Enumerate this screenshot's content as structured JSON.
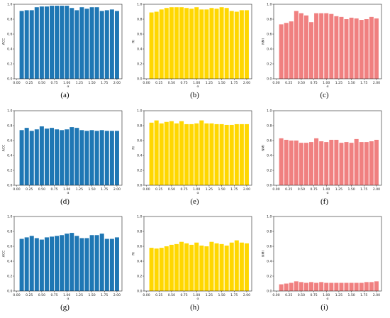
{
  "chart_data": [
    {
      "panel_label": "(a)",
      "type": "bar",
      "color": "#1f77b4",
      "xlabel": "α",
      "ylabel": "ACC",
      "ylim": [
        0,
        1.0
      ],
      "yticks": [
        "0.0",
        "0.2",
        "0.4",
        "0.6",
        "0.8",
        "1.0"
      ],
      "xticks": [
        "0.00",
        "0.25",
        "0.50",
        "0.75",
        "1.00",
        "1.25",
        "1.50",
        "1.75",
        "2.00"
      ],
      "x": [
        0.1,
        0.2,
        0.3,
        0.4,
        0.5,
        0.6,
        0.7,
        0.8,
        0.9,
        1.0,
        1.1,
        1.2,
        1.3,
        1.4,
        1.5,
        1.6,
        1.7,
        1.8,
        1.9,
        2.0
      ],
      "values": [
        0.91,
        0.92,
        0.92,
        0.96,
        0.97,
        0.97,
        0.98,
        0.98,
        0.98,
        0.98,
        0.95,
        0.92,
        0.96,
        0.94,
        0.96,
        0.96,
        0.91,
        0.92,
        0.93,
        0.91
      ]
    },
    {
      "panel_label": "(b)",
      "type": "bar",
      "color": "#ffd700",
      "xlabel": "α",
      "ylabel": "RI",
      "ylim": [
        0,
        1.0
      ],
      "yticks": [
        "0.0",
        "0.2",
        "0.4",
        "0.6",
        "0.8",
        "1.0"
      ],
      "xticks": [
        "0.00",
        "0.25",
        "0.50",
        "0.75",
        "1.00",
        "1.25",
        "1.50",
        "1.75",
        "2.00"
      ],
      "x": [
        0.1,
        0.2,
        0.3,
        0.4,
        0.5,
        0.6,
        0.7,
        0.8,
        0.9,
        1.0,
        1.1,
        1.2,
        1.3,
        1.4,
        1.5,
        1.6,
        1.7,
        1.8,
        1.9,
        2.0
      ],
      "values": [
        0.89,
        0.9,
        0.93,
        0.95,
        0.96,
        0.96,
        0.96,
        0.95,
        0.94,
        0.96,
        0.93,
        0.93,
        0.95,
        0.94,
        0.96,
        0.95,
        0.91,
        0.9,
        0.92,
        0.92
      ]
    },
    {
      "panel_label": "(c)",
      "type": "bar",
      "color": "#f08080",
      "xlabel": "α",
      "ylabel": "NMI",
      "ylim": [
        0,
        1.0
      ],
      "yticks": [
        "0.0",
        "0.2",
        "0.4",
        "0.6",
        "0.8",
        "1.0"
      ],
      "xticks": [
        "0.00",
        "0.25",
        "0.50",
        "0.75",
        "1.00",
        "1.25",
        "1.50",
        "1.75",
        "2.00"
      ],
      "x": [
        0.1,
        0.2,
        0.3,
        0.4,
        0.5,
        0.6,
        0.7,
        0.8,
        0.9,
        1.0,
        1.1,
        1.2,
        1.3,
        1.4,
        1.5,
        1.6,
        1.7,
        1.8,
        1.9,
        2.0
      ],
      "values": [
        0.73,
        0.75,
        0.77,
        0.91,
        0.88,
        0.85,
        0.76,
        0.88,
        0.88,
        0.88,
        0.87,
        0.84,
        0.83,
        0.8,
        0.82,
        0.81,
        0.79,
        0.8,
        0.83,
        0.81
      ]
    },
    {
      "panel_label": "(d)",
      "type": "bar",
      "color": "#1f77b4",
      "xlabel": "α",
      "ylabel": "ACC",
      "ylim": [
        0,
        1.0
      ],
      "yticks": [
        "0.0",
        "0.2",
        "0.4",
        "0.6",
        "0.8",
        "1.0"
      ],
      "xticks": [
        "0.00",
        "0.25",
        "0.50",
        "0.75",
        "1.00",
        "1.25",
        "1.50",
        "1.75",
        "2.00"
      ],
      "x": [
        0.1,
        0.2,
        0.3,
        0.4,
        0.5,
        0.6,
        0.7,
        0.8,
        0.9,
        1.0,
        1.1,
        1.2,
        1.3,
        1.4,
        1.5,
        1.6,
        1.7,
        1.8,
        1.9,
        2.0
      ],
      "values": [
        0.74,
        0.77,
        0.73,
        0.75,
        0.79,
        0.76,
        0.77,
        0.75,
        0.74,
        0.75,
        0.78,
        0.77,
        0.74,
        0.73,
        0.74,
        0.73,
        0.74,
        0.73,
        0.73,
        0.73
      ]
    },
    {
      "panel_label": "(e)",
      "type": "bar",
      "color": "#ffd700",
      "xlabel": "α",
      "ylabel": "RI",
      "ylim": [
        0,
        1.0
      ],
      "yticks": [
        "0.0",
        "0.2",
        "0.4",
        "0.6",
        "0.8",
        "1.0"
      ],
      "xticks": [
        "0.00",
        "0.25",
        "0.50",
        "0.75",
        "1.00",
        "1.25",
        "1.50",
        "1.75",
        "2.00"
      ],
      "x": [
        0.1,
        0.2,
        0.3,
        0.4,
        0.5,
        0.6,
        0.7,
        0.8,
        0.9,
        1.0,
        1.1,
        1.2,
        1.3,
        1.4,
        1.5,
        1.6,
        1.7,
        1.8,
        1.9,
        2.0
      ],
      "values": [
        0.84,
        0.87,
        0.83,
        0.85,
        0.86,
        0.83,
        0.86,
        0.82,
        0.82,
        0.83,
        0.87,
        0.83,
        0.83,
        0.82,
        0.82,
        0.81,
        0.81,
        0.82,
        0.82,
        0.82
      ]
    },
    {
      "panel_label": "(f)",
      "type": "bar",
      "color": "#f08080",
      "xlabel": "α",
      "ylabel": "NMI",
      "ylim": [
        0,
        1.0
      ],
      "yticks": [
        "0.0",
        "0.2",
        "0.4",
        "0.6",
        "0.8",
        "1.0"
      ],
      "xticks": [
        "0.00",
        "0.25",
        "0.50",
        "0.75",
        "1.00",
        "1.25",
        "1.50",
        "1.75",
        "2.00"
      ],
      "x": [
        0.1,
        0.2,
        0.3,
        0.4,
        0.5,
        0.6,
        0.7,
        0.8,
        0.9,
        1.0,
        1.1,
        1.2,
        1.3,
        1.4,
        1.5,
        1.6,
        1.7,
        1.8,
        1.9,
        2.0
      ],
      "values": [
        0.63,
        0.61,
        0.6,
        0.6,
        0.57,
        0.57,
        0.58,
        0.63,
        0.59,
        0.58,
        0.61,
        0.61,
        0.57,
        0.58,
        0.57,
        0.62,
        0.58,
        0.58,
        0.59,
        0.61
      ]
    },
    {
      "panel_label": "(g)",
      "type": "bar",
      "color": "#1f77b4",
      "xlabel": "α",
      "ylabel": "ACC",
      "ylim": [
        0,
        1.0
      ],
      "yticks": [
        "0.0",
        "0.2",
        "0.4",
        "0.6",
        "0.8",
        "1.0"
      ],
      "xticks": [
        "0.00",
        "0.25",
        "0.50",
        "0.75",
        "1.00",
        "1.25",
        "1.50",
        "1.75",
        "2.00"
      ],
      "x": [
        0.1,
        0.2,
        0.3,
        0.4,
        0.5,
        0.6,
        0.7,
        0.8,
        0.9,
        1.0,
        1.1,
        1.2,
        1.3,
        1.4,
        1.5,
        1.6,
        1.7,
        1.8,
        1.9,
        2.0
      ],
      "values": [
        0.7,
        0.72,
        0.74,
        0.71,
        0.69,
        0.72,
        0.73,
        0.74,
        0.75,
        0.77,
        0.78,
        0.74,
        0.71,
        0.71,
        0.75,
        0.75,
        0.77,
        0.7,
        0.7,
        0.72
      ]
    },
    {
      "panel_label": "(h)",
      "type": "bar",
      "color": "#ffd700",
      "xlabel": "α",
      "ylabel": "RI",
      "ylim": [
        0,
        1.0
      ],
      "yticks": [
        "0.0",
        "0.2",
        "0.4",
        "0.6",
        "0.8",
        "1.0"
      ],
      "xticks": [
        "0.00",
        "0.25",
        "0.50",
        "0.75",
        "1.00",
        "1.25",
        "1.50",
        "1.75",
        "2.00"
      ],
      "x": [
        0.1,
        0.2,
        0.3,
        0.4,
        0.5,
        0.6,
        0.7,
        0.8,
        0.9,
        1.0,
        1.1,
        1.2,
        1.3,
        1.4,
        1.5,
        1.6,
        1.7,
        1.8,
        1.9,
        2.0
      ],
      "values": [
        0.58,
        0.57,
        0.58,
        0.6,
        0.62,
        0.63,
        0.66,
        0.64,
        0.62,
        0.65,
        0.61,
        0.6,
        0.66,
        0.64,
        0.63,
        0.61,
        0.65,
        0.68,
        0.65,
        0.64
      ]
    },
    {
      "panel_label": "(i)",
      "type": "bar",
      "color": "#f08080",
      "xlabel": "α",
      "ylabel": "NMI",
      "ylim": [
        0,
        1.0
      ],
      "yticks": [
        "0.0",
        "0.2",
        "0.4",
        "0.6",
        "0.8",
        "1.0"
      ],
      "xticks": [
        "0.00",
        "0.25",
        "0.50",
        "0.75",
        "1.00",
        "1.25",
        "1.50",
        "1.75",
        "2.00"
      ],
      "x": [
        0.1,
        0.2,
        0.3,
        0.4,
        0.5,
        0.6,
        0.7,
        0.8,
        0.9,
        1.0,
        1.1,
        1.2,
        1.3,
        1.4,
        1.5,
        1.6,
        1.7,
        1.8,
        1.9,
        2.0
      ],
      "values": [
        0.09,
        0.1,
        0.11,
        0.13,
        0.12,
        0.11,
        0.12,
        0.11,
        0.12,
        0.11,
        0.11,
        0.11,
        0.11,
        0.11,
        0.11,
        0.11,
        0.11,
        0.12,
        0.12,
        0.13
      ]
    }
  ]
}
